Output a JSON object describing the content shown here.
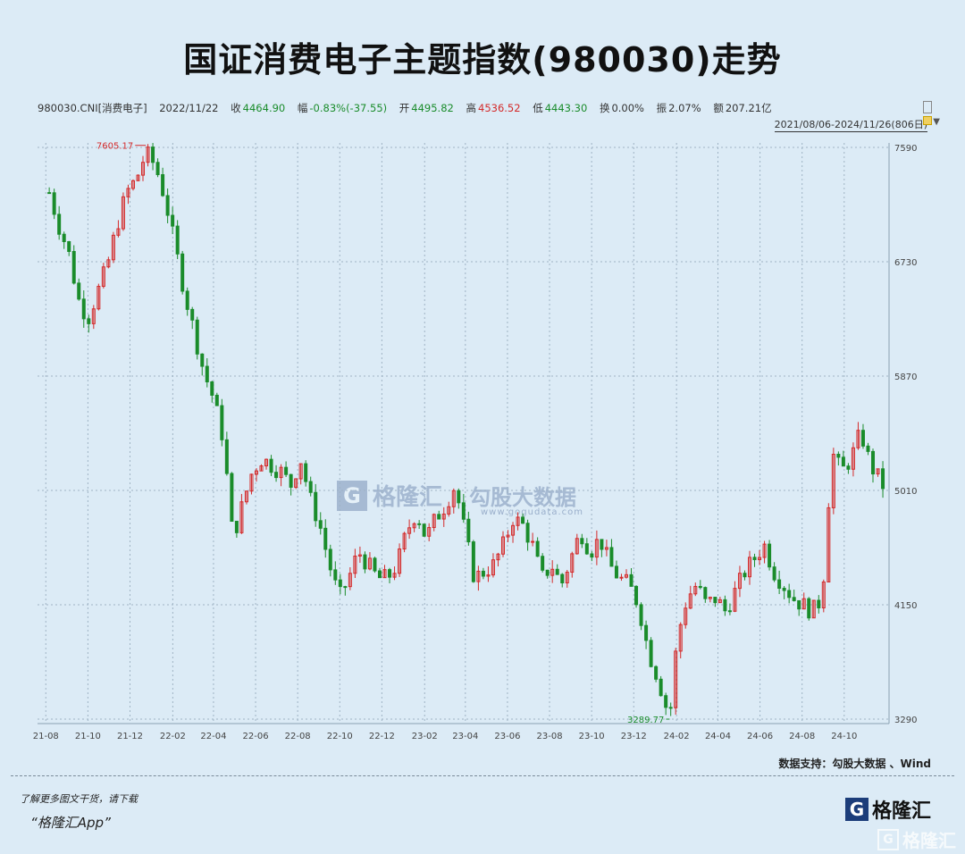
{
  "header": {
    "title": "国证消费电子主题指数(980030)走势"
  },
  "infobar": {
    "code": "980030.CNI[消费电子]",
    "date": "2022/11/22",
    "close_label": "收",
    "close": "4464.90",
    "change_label": "幅",
    "change": "-0.83%(-37.55)",
    "open_label": "开",
    "open": "4495.82",
    "high_label": "高",
    "high": "4536.52",
    "low_label": "低",
    "low": "4443.30",
    "turnover_label": "换",
    "turnover": "0.00%",
    "amplitude_label": "振",
    "amplitude": "2.07%",
    "amount_label": "额",
    "amount": "207.21亿",
    "range": "2021/08/06-2024/11/26(806日)"
  },
  "chart_data": {
    "type": "line",
    "style": "candlestick",
    "x_ticks": [
      "21-08",
      "21-10",
      "21-12",
      "22-02",
      "22-04",
      "22-06",
      "22-08",
      "22-10",
      "22-12",
      "23-02",
      "23-04",
      "23-06",
      "23-08",
      "23-10",
      "23-12",
      "24-02",
      "24-04",
      "24-06",
      "24-08",
      "24-10"
    ],
    "y_ticks": [
      7590,
      6730,
      5870,
      5010,
      4150,
      3290
    ],
    "ylim": [
      3290,
      7590
    ],
    "annotations": [
      {
        "x": "2021-12-24",
        "y": 7605.17,
        "label": "7605.17"
      },
      {
        "x": "2024-01-22",
        "y": 3289.77,
        "label": "3289.77"
      }
    ],
    "colors": {
      "up": "#d42a2a",
      "down": "#1a8c2b",
      "grid": "#9fb3c4"
    },
    "series": [
      {
        "x": [
          "2021-08-06",
          "2021-08-20",
          "2021-09-03",
          "2021-09-17",
          "2021-10-01",
          "2021-10-15",
          "2021-10-29",
          "2021-11-12",
          "2021-11-26",
          "2021-12-10",
          "2021-12-24",
          "2022-01-07",
          "2022-01-21",
          "2022-02-04",
          "2022-02-18",
          "2022-03-04",
          "2022-03-18",
          "2022-04-01",
          "2022-04-15",
          "2022-04-29",
          "2022-05-13",
          "2022-05-27",
          "2022-06-10",
          "2022-06-24",
          "2022-07-08",
          "2022-07-22",
          "2022-08-05",
          "2022-08-19",
          "2022-09-02",
          "2022-09-16",
          "2022-09-30",
          "2022-10-14",
          "2022-10-28",
          "2022-11-11",
          "2022-11-25",
          "2022-12-09",
          "2022-12-23",
          "2023-01-06",
          "2023-01-20",
          "2023-02-03",
          "2023-02-17",
          "2023-03-03",
          "2023-03-17",
          "2023-03-31",
          "2023-04-14",
          "2023-04-28",
          "2023-05-12",
          "2023-05-26",
          "2023-06-09",
          "2023-06-23",
          "2023-07-07",
          "2023-07-21",
          "2023-08-04",
          "2023-08-18",
          "2023-09-01",
          "2023-09-15",
          "2023-09-29",
          "2023-10-13",
          "2023-10-27",
          "2023-11-10",
          "2023-11-24",
          "2023-12-08",
          "2023-12-22",
          "2024-01-05",
          "2024-01-22",
          "2024-02-02",
          "2024-02-16",
          "2024-03-01",
          "2024-03-15",
          "2024-03-29",
          "2024-04-12",
          "2024-04-26",
          "2024-05-10",
          "2024-05-24",
          "2024-06-07",
          "2024-06-21",
          "2024-07-05",
          "2024-07-19",
          "2024-08-02",
          "2024-08-16",
          "2024-08-30",
          "2024-09-13",
          "2024-09-27",
          "2024-10-11",
          "2024-10-25",
          "2024-11-08",
          "2024-11-26"
        ],
        "values": [
          7250,
          7000,
          6800,
          6450,
          6300,
          6500,
          6700,
          7000,
          7250,
          7350,
          7550,
          7450,
          7200,
          6850,
          6500,
          6200,
          5900,
          5700,
          5400,
          4650,
          4900,
          5150,
          5250,
          5200,
          5150,
          5050,
          5250,
          4950,
          4750,
          4450,
          4200,
          4350,
          4550,
          4450,
          4350,
          4350,
          4450,
          4700,
          4850,
          4650,
          4800,
          4900,
          5050,
          4700,
          4350,
          4400,
          4450,
          4600,
          4800,
          4750,
          4600,
          4350,
          4450,
          4300,
          4500,
          4700,
          4550,
          4650,
          4450,
          4350,
          4300,
          4150,
          3800,
          3600,
          3290,
          3900,
          4200,
          4300,
          4150,
          4200,
          4100,
          4250,
          4400,
          4500,
          4600,
          4400,
          4300,
          4200,
          4150,
          4100,
          4200,
          5300,
          5150,
          5250,
          5450,
          5200,
          5050
        ]
      }
    ]
  },
  "footer": {
    "source": "数据支持：勾股大数据 、Wind",
    "promo_line1": "了解更多图文干货，请下载",
    "promo_line2": "“格隆汇App”",
    "logo_letter": "G",
    "logo_text": "格隆汇",
    "watermark_center_left": "格隆汇",
    "watermark_center_right": "勾股大数据",
    "watermark_url": "www.gogudata.com"
  }
}
